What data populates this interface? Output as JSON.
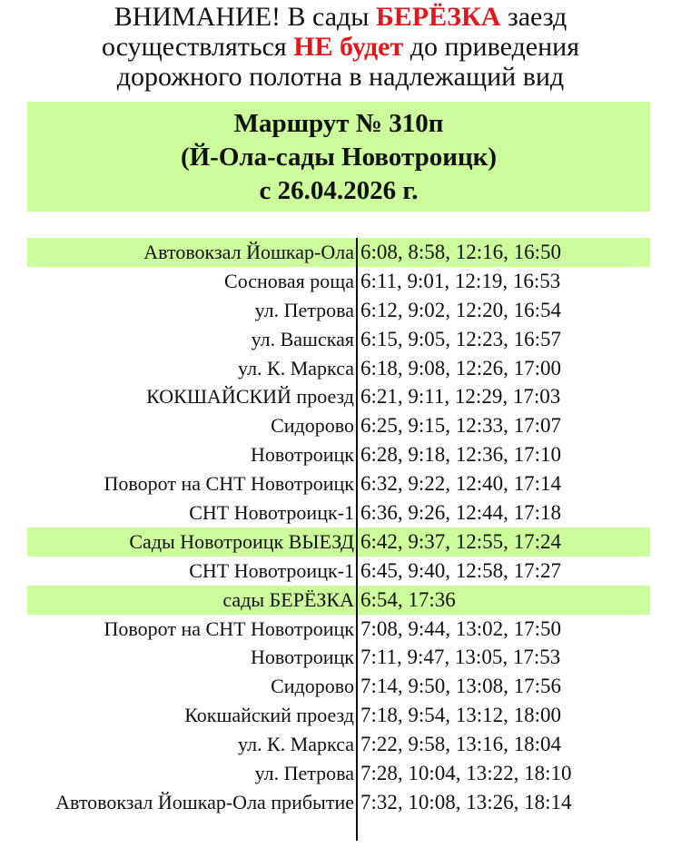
{
  "notice": {
    "line1_a": "ВНИМАНИЕ! В сады ",
    "line1_red": "БЕРЁЗКА",
    "line1_b": " заезд",
    "line2_a": "осуществляться ",
    "line2_red": "НЕ будет",
    "line2_b": " до приведения",
    "line3": "дорожного полотна в надлежащий вид"
  },
  "title": {
    "route": "Маршрут № 310п",
    "direction": "(Й-Ола-сады Новотроицк)",
    "date": "с 26.04.2026 г."
  },
  "colors": {
    "highlight": "#ccfc9c",
    "alert": "#e3161b"
  },
  "schedule": [
    {
      "stop": "Автовокзал Йошкар-Ола",
      "times": "6:08, 8:58, 12:16, 16:50",
      "highlight": true
    },
    {
      "stop": "Сосновая роща",
      "times": "6:11, 9:01, 12:19, 16:53",
      "highlight": false
    },
    {
      "stop": "ул. Петрова",
      "times": "6:12, 9:02, 12:20, 16:54",
      "highlight": false
    },
    {
      "stop": "ул. Вашская",
      "times": "6:15, 9:05, 12:23, 16:57",
      "highlight": false
    },
    {
      "stop": "ул.  К. Маркса",
      "times": "6:18, 9:08, 12:26, 17:00",
      "highlight": false
    },
    {
      "stop": "КОКШАЙСКИЙ проезд",
      "times": "6:21, 9:11, 12:29, 17:03",
      "highlight": false
    },
    {
      "stop": "Сидорово",
      "times": "6:25, 9:15, 12:33, 17:07",
      "highlight": false
    },
    {
      "stop": "Новотроицк",
      "times": "6:28, 9:18, 12:36, 17:10",
      "highlight": false
    },
    {
      "stop": "Поворот на СНТ Новотроицк",
      "times": "6:32, 9:22, 12:40, 17:14",
      "highlight": false
    },
    {
      "stop": "СНТ Новотроицк-1",
      "times": "6:36, 9:26, 12:44, 17:18",
      "highlight": false
    },
    {
      "stop": "Сады Новотроицк ВЫЕЗД",
      "times": "6:42, 9:37, 12:55, 17:24",
      "highlight": true
    },
    {
      "stop": "СНТ Новотроицк-1",
      "times": "6:45, 9:40, 12:58, 17:27",
      "highlight": false
    },
    {
      "stop": "сады БЕРЁЗКА",
      "times": "6:54, 17:36",
      "highlight": true
    },
    {
      "stop": "Поворот на СНТ Новотроицк",
      "times": "7:08, 9:44, 13:02, 17:50",
      "highlight": false
    },
    {
      "stop": "Новотроицк",
      "times": "7:11, 9:47, 13:05, 17:53",
      "highlight": false
    },
    {
      "stop": "Сидорово",
      "times": "7:14, 9:50, 13:08, 17:56",
      "highlight": false
    },
    {
      "stop": "Кокшайский проезд",
      "times": "7:18, 9:54, 13:12, 18:00",
      "highlight": false
    },
    {
      "stop": "ул.  К. Маркса",
      "times": "7:22, 9:58, 13:16, 18:04",
      "highlight": false
    },
    {
      "stop": "ул. Петрова",
      "times": "7:28, 10:04, 13:22, 18:10",
      "highlight": false
    },
    {
      "stop": "Автовокзал Йошкар-Ола прибытие",
      "times": "7:32, 10:08, 13:26, 18:14",
      "highlight": false
    }
  ]
}
